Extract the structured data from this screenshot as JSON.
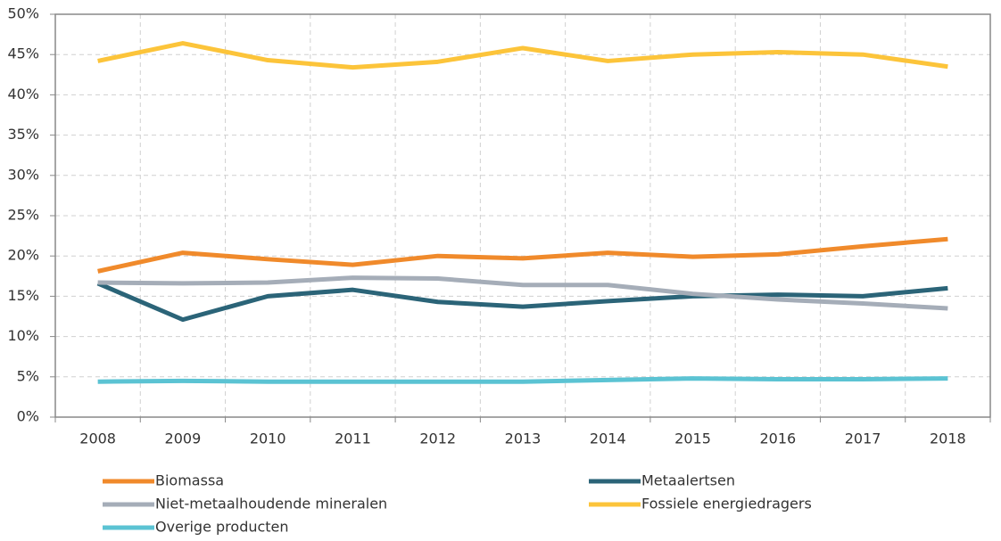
{
  "chart_data": {
    "type": "line",
    "categories": [
      "2008",
      "2009",
      "2010",
      "2011",
      "2012",
      "2013",
      "2014",
      "2015",
      "2016",
      "2017",
      "2018"
    ],
    "series": [
      {
        "name": "Biomassa",
        "color": "#f08a2b",
        "values": [
          18.1,
          20.4,
          19.6,
          18.9,
          20.0,
          19.7,
          20.4,
          19.9,
          20.2,
          21.2,
          22.1
        ]
      },
      {
        "name": "Metaalertsen",
        "color": "#2b6478",
        "values": [
          16.6,
          12.1,
          15.0,
          15.8,
          14.3,
          13.7,
          14.4,
          15.0,
          15.2,
          15.0,
          16.0
        ]
      },
      {
        "name": "Niet-metaalhoudende mineralen",
        "color": "#a5adb8",
        "values": [
          16.7,
          16.6,
          16.7,
          17.3,
          17.2,
          16.4,
          16.4,
          15.3,
          14.6,
          14.1,
          13.5
        ]
      },
      {
        "name": "Fossiele energiedragers",
        "color": "#fcc43a",
        "values": [
          44.2,
          46.4,
          44.3,
          43.4,
          44.1,
          45.8,
          44.2,
          45.0,
          45.3,
          45.0,
          43.5
        ]
      },
      {
        "name": "Overige producten",
        "color": "#5bc3d3",
        "values": [
          4.4,
          4.5,
          4.4,
          4.4,
          4.4,
          4.4,
          4.6,
          4.8,
          4.7,
          4.7,
          4.8
        ]
      }
    ],
    "ylim": [
      0,
      50
    ],
    "yticks": [
      {
        "value": 0,
        "label": "0%"
      },
      {
        "value": 5,
        "label": "5%"
      },
      {
        "value": 10,
        "label": "10%"
      },
      {
        "value": 15,
        "label": "15%"
      },
      {
        "value": 20,
        "label": "20%"
      },
      {
        "value": 25,
        "label": "25%"
      },
      {
        "value": 30,
        "label": "30%"
      },
      {
        "value": 35,
        "label": "35%"
      },
      {
        "value": 40,
        "label": "40%"
      },
      {
        "value": 45,
        "label": "45%"
      },
      {
        "value": 50,
        "label": "50%"
      }
    ],
    "grid": true,
    "legend": "bottom"
  }
}
